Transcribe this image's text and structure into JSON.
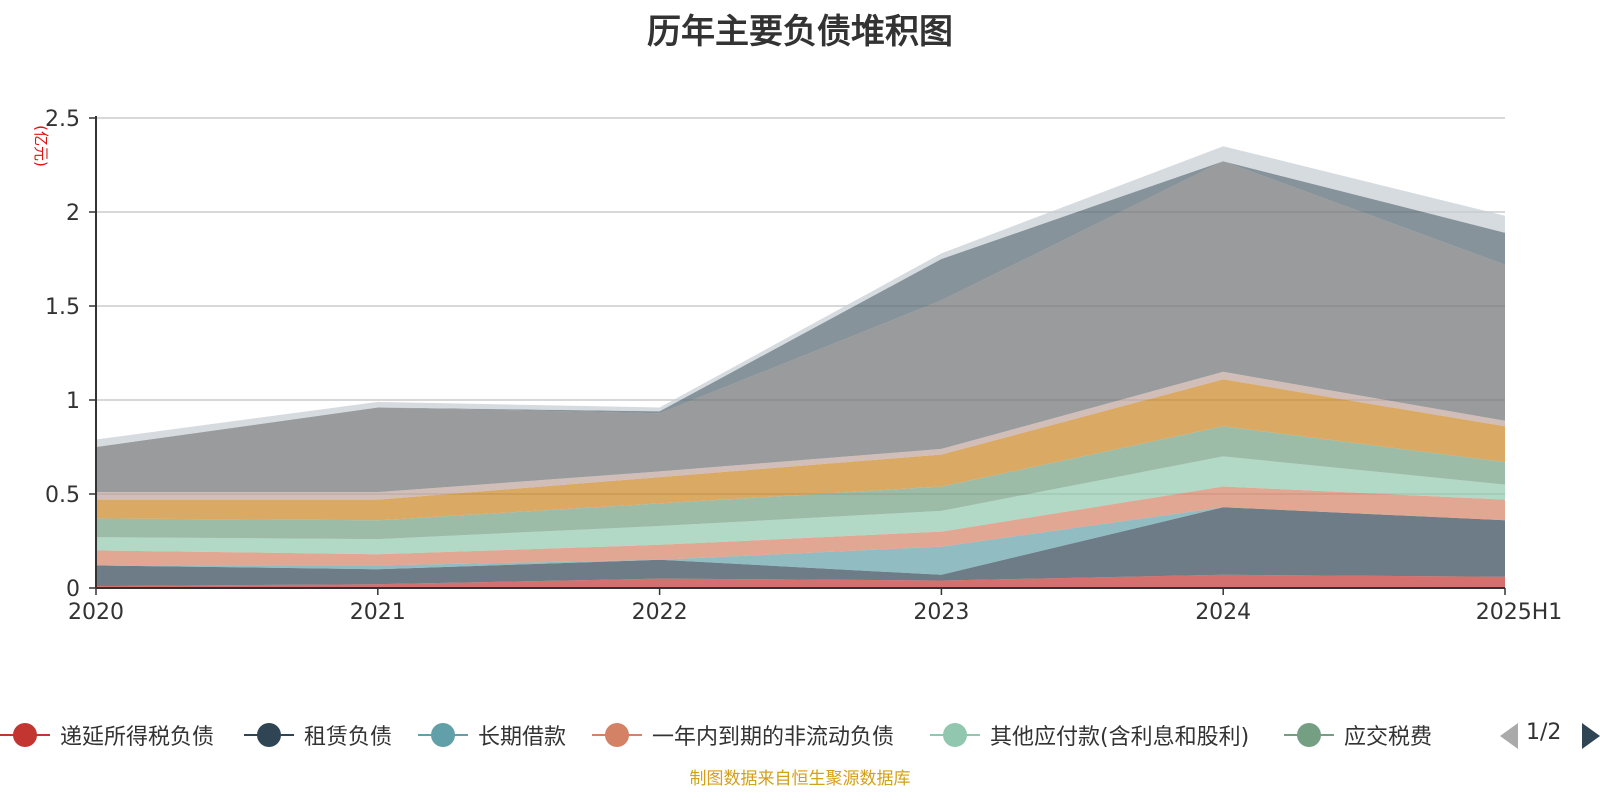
{
  "title": "历年主要负债堆积图",
  "source_note": "制图数据来自恒生聚源数据库",
  "legend_page": "1/2",
  "chart_data": {
    "type": "area",
    "stacked": true,
    "title": "历年主要负债堆积图",
    "ylabel": "(亿元)",
    "ylim": [
      0,
      2.5
    ],
    "yticks": [
      "0",
      "0.5",
      "1",
      "1.5",
      "2",
      "2.5"
    ],
    "categories": [
      "2020",
      "2021",
      "2022",
      "2023",
      "2024",
      "2025H1"
    ],
    "grid": true,
    "legend_position": "bottom",
    "series": [
      {
        "name": "递延所得税负债",
        "color": "#c23531",
        "values": [
          0.01,
          0.02,
          0.05,
          0.04,
          0.07,
          0.06
        ]
      },
      {
        "name": "租赁负债",
        "color": "#2f4554",
        "values": [
          0.11,
          0.08,
          0.1,
          0.03,
          0.36,
          0.3
        ]
      },
      {
        "name": "长期借款",
        "color": "#61a0a8",
        "values": [
          0.0,
          0.02,
          0.0,
          0.15,
          0.0,
          0.0
        ]
      },
      {
        "name": "一年内到期的非流动负债",
        "color": "#d48265",
        "values": [
          0.08,
          0.06,
          0.08,
          0.08,
          0.11,
          0.11
        ]
      },
      {
        "name": "其他应付款(含利息和股利)",
        "color": "#91c7ae",
        "values": [
          0.07,
          0.08,
          0.1,
          0.11,
          0.16,
          0.08
        ]
      },
      {
        "name": "应交税费",
        "color": "#749f83",
        "values": [
          0.1,
          0.1,
          0.12,
          0.13,
          0.16,
          0.12
        ]
      },
      {
        "name": "",
        "color": "#ca8622",
        "values": [
          0.1,
          0.11,
          0.14,
          0.17,
          0.25,
          0.19
        ]
      },
      {
        "name": "",
        "color": "#bda29a",
        "values": [
          0.04,
          0.04,
          0.03,
          0.03,
          0.04,
          0.03
        ]
      },
      {
        "name": "",
        "color": "#6e7074",
        "values": [
          0.24,
          0.45,
          0.31,
          0.79,
          1.12,
          0.83
        ]
      },
      {
        "name": "",
        "color": "#546570",
        "values": [
          0.0,
          0.0,
          0.01,
          0.22,
          0.0,
          0.17
        ]
      },
      {
        "name": "",
        "color": "#c4ccd3",
        "values": [
          0.04,
          0.03,
          0.02,
          0.03,
          0.08,
          0.09
        ]
      }
    ]
  }
}
